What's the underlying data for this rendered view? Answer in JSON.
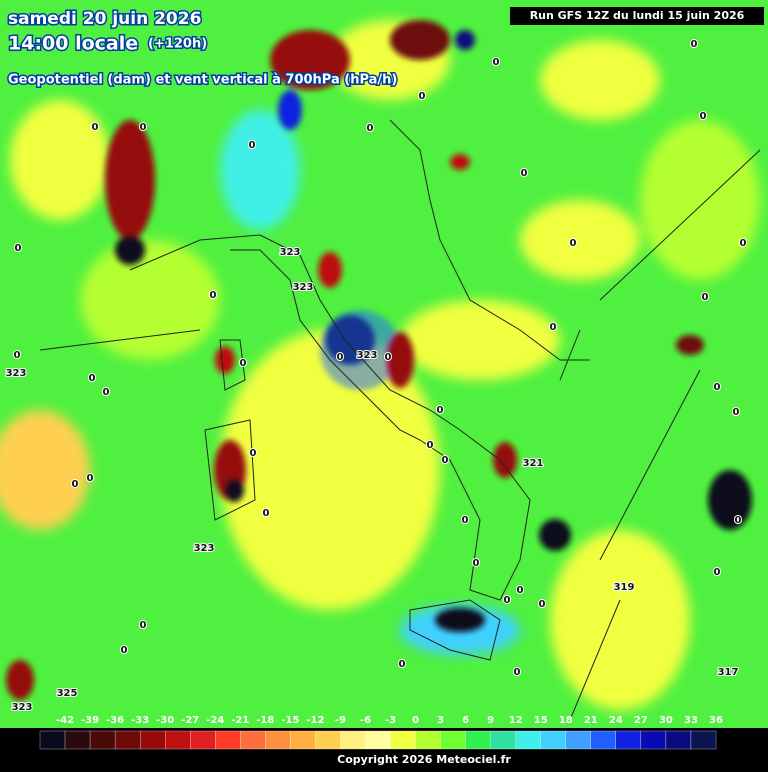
{
  "header": {
    "date": "samedi 20 juin 2026",
    "time": "14:00 locale",
    "lead": "(+120h)",
    "subtitle": "Geopotentiel (dam) et vent vertical à 700hPa (hPa/h)",
    "run": "Run GFS 12Z du lundi 15 juin 2026"
  },
  "contour_labels": [
    0,
    0,
    0,
    0,
    0,
    0,
    0,
    0,
    0,
    0,
    0,
    0,
    0,
    0,
    0,
    0,
    0,
    0,
    0,
    0,
    0,
    0,
    0,
    0,
    0,
    0,
    0,
    0,
    0,
    0,
    0,
    0,
    0,
    0,
    0,
    0,
    0,
    0,
    0,
    0,
    0,
    323,
    323,
    323,
    323,
    323,
    321,
    319,
    317,
    325,
    323
  ],
  "legend": {
    "values": [
      -42,
      -39,
      -36,
      -33,
      -30,
      -27,
      -24,
      -21,
      -18,
      -15,
      -12,
      -9,
      -6,
      -3,
      0,
      3,
      6,
      9,
      12,
      15,
      18,
      21,
      24,
      27,
      30,
      33,
      36
    ],
    "colors": [
      "#0a0a1e",
      "#2a0a0a",
      "#4a0a0a",
      "#6e0a0a",
      "#960a0a",
      "#be1010",
      "#e02020",
      "#ff3c28",
      "#ff6e3c",
      "#ff9040",
      "#ffb040",
      "#ffd050",
      "#fff080",
      "#ffffa0",
      "#f0ff40",
      "#b4ff30",
      "#70ff30",
      "#30f050",
      "#30e0a0",
      "#40f0e8",
      "#40d0ff",
      "#40a0ff",
      "#2060ff",
      "#1020e0",
      "#0a0ab4",
      "#0a0a80",
      "#0a1450"
    ]
  },
  "copyright": "Copyright 2026 Meteociel.fr"
}
